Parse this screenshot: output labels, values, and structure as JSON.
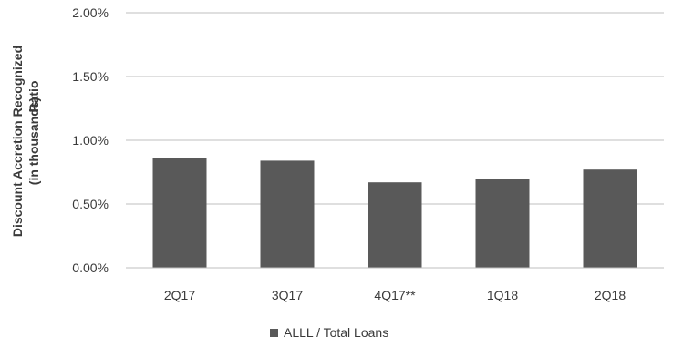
{
  "chart_data": {
    "type": "bar",
    "categories": [
      "2Q17",
      "3Q17",
      "4Q17**",
      "1Q18",
      "2Q18"
    ],
    "series": [
      {
        "name": "ALLL / Total Loans",
        "values": [
          0.86,
          0.84,
          0.67,
          0.7,
          0.77
        ],
        "color": "#595959"
      }
    ],
    "y_unit": "percent",
    "ylim": [
      0,
      2.0
    ],
    "yticks": [
      0,
      0.5,
      1.0,
      1.5,
      2.0
    ],
    "ytick_labels": [
      "0.00%",
      "0.50%",
      "1.00%",
      "1.50%",
      "2.00%"
    ],
    "ylabel_line1": "Discount Accretion Recognized",
    "ylabel_line2": "(in thousands)",
    "ylabel_overlap": "Ratio",
    "grid": true,
    "legend_position": "bottom-center"
  }
}
